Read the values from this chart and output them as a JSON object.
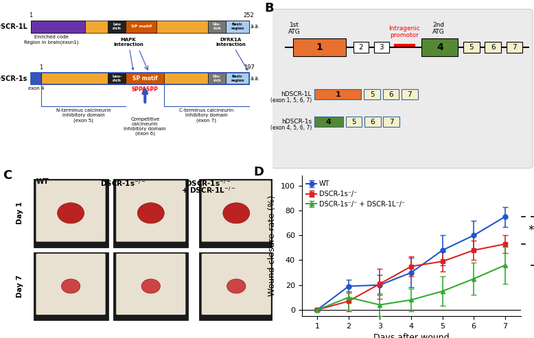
{
  "panel_D": {
    "days": [
      1,
      2,
      3,
      4,
      5,
      6,
      7
    ],
    "WT_mean": [
      0,
      19,
      20,
      30,
      48,
      60,
      75
    ],
    "WT_err": [
      1,
      5,
      8,
      12,
      12,
      12,
      8
    ],
    "DSCR1s_mean": [
      0,
      7,
      21,
      35,
      39,
      48,
      53
    ],
    "DSCR1s_err": [
      1,
      8,
      12,
      8,
      8,
      8,
      7
    ],
    "DKO_mean": [
      0,
      10,
      4,
      8,
      15,
      25,
      36
    ],
    "DKO_err": [
      1,
      10,
      9,
      9,
      12,
      13,
      15
    ],
    "ylabel": "Wound closure rate (%)",
    "xlabel": "Days after wound",
    "WT_color": "#2255cc",
    "DSCR1s_color": "#dd2222",
    "DKO_color": "#33aa33",
    "WT_label": "WT",
    "DSCR1s_label": "DSCR-1s⁻/⁻",
    "DKO_label": "DSCR-1s⁻/⁻ + DSCR-1L⁻/⁻"
  },
  "figure_bg": "#ffffff",
  "panel_labels_fontsize": 13,
  "panel_label_color": "#000000"
}
